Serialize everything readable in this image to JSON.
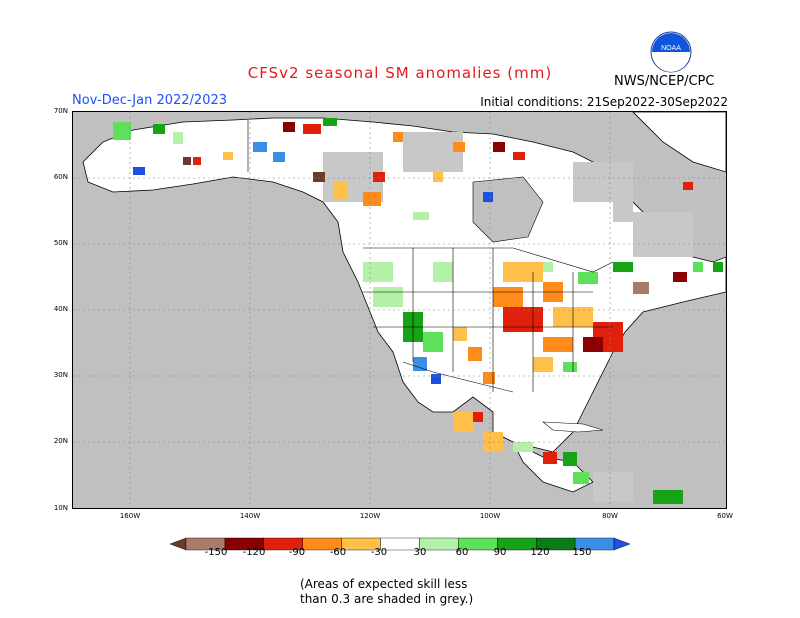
{
  "header": {
    "title": "CFSv2 seasonal SM anomalies (mm)",
    "period": "Nov-Dec-Jan 2022/2023",
    "initial_conditions": "Initial conditions: 21Sep2022-30Sep2022",
    "agency": "NWS/NCEP/CPC",
    "logo_text": "NOAA"
  },
  "map": {
    "lat_labels": [
      "70N",
      "60N",
      "50N",
      "40N",
      "30N",
      "20N",
      "10N"
    ],
    "lon_labels": [
      "160W",
      "140W",
      "120W",
      "100W",
      "80W",
      "60W"
    ],
    "colors": {
      "ocean": "#c0c0c0",
      "land": "#ffffff",
      "grey_low_skill": "#c8c8c8"
    }
  },
  "legend": {
    "labels": [
      "-150",
      "-120",
      "-90",
      "-60",
      "-30",
      "30",
      "60",
      "90",
      "120",
      "150"
    ],
    "bins": [
      {
        "color": "#6b3a2a"
      },
      {
        "color": "#a87a6a"
      },
      {
        "color": "#8b0000"
      },
      {
        "color": "#e0200a"
      },
      {
        "color": "#ff8c1a"
      },
      {
        "color": "#ffc04a"
      },
      {
        "color": "#ffffff"
      },
      {
        "color": "#b4f0a8"
      },
      {
        "color": "#5ee05a"
      },
      {
        "color": "#16a316"
      },
      {
        "color": "#0b7a18"
      },
      {
        "color": "#3a8ee8"
      },
      {
        "color": "#1e50e0"
      }
    ]
  },
  "footnote": {
    "line1": "(Areas of expected skill less",
    "line2": "than 0.3 are shaded in grey.)"
  }
}
